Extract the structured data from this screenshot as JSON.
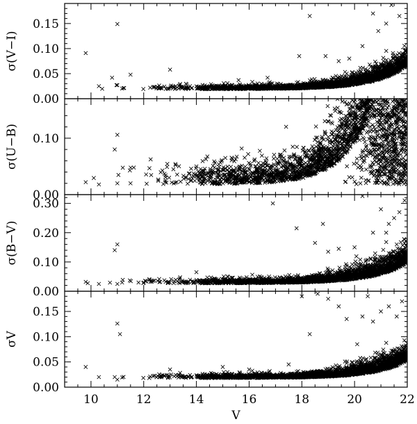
{
  "chart_data": [
    {
      "type": "scatter",
      "ylabel": "σ(V−I)",
      "xlim": [
        9,
        22
      ],
      "ylim": [
        0,
        0.19
      ],
      "yticks": [
        0.0,
        0.05,
        0.1,
        0.15
      ],
      "ytick_labels": [
        "0.00",
        "0.05",
        "0.10",
        "0.15"
      ],
      "marker": "x",
      "trend": {
        "floor": 0.019,
        "amp": 0.048,
        "rate": 0.85,
        "center": 22,
        "noise": 0.004,
        "tail_cap": 0.19
      },
      "points": [
        [
          9.8,
          0.091
        ],
        [
          10.3,
          0.025
        ],
        [
          10.8,
          0.042
        ],
        [
          11.0,
          0.149
        ],
        [
          11.0,
          0.027
        ],
        [
          11.5,
          0.048
        ],
        [
          13.0,
          0.058
        ],
        [
          15.6,
          0.037
        ],
        [
          16.7,
          0.042
        ],
        [
          17.9,
          0.085
        ],
        [
          18.3,
          0.165
        ],
        [
          18.9,
          0.085
        ],
        [
          19.4,
          0.075
        ],
        [
          19.8,
          0.08
        ],
        [
          20.3,
          0.105
        ],
        [
          20.7,
          0.17
        ],
        [
          20.9,
          0.135
        ],
        [
          21.2,
          0.15
        ],
        [
          21.4,
          0.187
        ],
        [
          21.7,
          0.165
        ],
        [
          21.8,
          0.085
        ],
        [
          20.9,
          0.065
        ],
        [
          21.2,
          0.06
        ]
      ]
    },
    {
      "type": "scatter",
      "ylabel": "σ(U−B)",
      "xlim": [
        9,
        22
      ],
      "ylim": [
        0,
        0.17
      ],
      "yticks": [
        0.0,
        0.1
      ],
      "ytick_labels": [
        "0.00",
        "0.10"
      ],
      "marker": "x",
      "trend": {
        "floor": 0.018,
        "amp": 0.09,
        "rate": 0.95,
        "center": 20.2,
        "noise": 0.02,
        "tail_cap": 0.17
      },
      "points": [
        [
          9.8,
          0.022
        ],
        [
          10.3,
          0.018
        ],
        [
          10.9,
          0.08
        ],
        [
          11.0,
          0.106
        ],
        [
          11.0,
          0.02
        ],
        [
          11.5,
          0.02
        ],
        [
          14.0,
          0.05
        ],
        [
          17.5,
          0.03
        ],
        [
          18.0,
          0.04
        ],
        [
          18.6,
          0.06
        ],
        [
          19.0,
          0.08
        ],
        [
          19.4,
          0.11
        ],
        [
          19.8,
          0.14
        ],
        [
          20.1,
          0.16
        ],
        [
          20.5,
          0.15
        ],
        [
          21.0,
          0.16
        ],
        [
          21.5,
          0.14
        ],
        [
          21.8,
          0.13
        ]
      ]
    },
    {
      "type": "scatter",
      "ylabel": "σ(B−V)",
      "xlim": [
        9,
        22
      ],
      "ylim": [
        0,
        0.33
      ],
      "yticks": [
        0.0,
        0.1,
        0.2,
        0.3
      ],
      "ytick_labels": [
        "0.00",
        "0.10",
        "0.20",
        "0.30"
      ],
      "marker": "x",
      "trend": {
        "floor": 0.027,
        "amp": 0.07,
        "rate": 0.8,
        "center": 22,
        "noise": 0.008,
        "tail_cap": 0.33
      },
      "points": [
        [
          9.8,
          0.032
        ],
        [
          10.3,
          0.025
        ],
        [
          10.9,
          0.14
        ],
        [
          11.0,
          0.16
        ],
        [
          11.0,
          0.025
        ],
        [
          12.0,
          0.03
        ],
        [
          14.0,
          0.065
        ],
        [
          16.9,
          0.3
        ],
        [
          17.8,
          0.215
        ],
        [
          18.5,
          0.165
        ],
        [
          18.8,
          0.23
        ],
        [
          19.0,
          0.135
        ],
        [
          19.4,
          0.145
        ],
        [
          20.0,
          0.15
        ],
        [
          20.3,
          0.325
        ],
        [
          20.7,
          0.2
        ],
        [
          21.0,
          0.28
        ],
        [
          21.2,
          0.2
        ],
        [
          21.5,
          0.25
        ],
        [
          21.7,
          0.27
        ],
        [
          21.9,
          0.31
        ],
        [
          21.3,
          0.23
        ],
        [
          21.6,
          0.16
        ]
      ]
    },
    {
      "type": "scatter",
      "ylabel": "σV",
      "xlabel": "V",
      "xlim": [
        9,
        22
      ],
      "ylim": [
        0,
        0.19
      ],
      "xticks": [
        10,
        12,
        14,
        16,
        18,
        20,
        22
      ],
      "xtick_labels": [
        "10",
        "12",
        "14",
        "16",
        "18",
        "20",
        "22"
      ],
      "yticks": [
        0.0,
        0.05,
        0.1,
        0.15
      ],
      "ytick_labels": [
        "0.00",
        "0.05",
        "0.10",
        "0.15"
      ],
      "marker": "x",
      "trend": {
        "floor": 0.018,
        "amp": 0.035,
        "rate": 0.85,
        "center": 22,
        "noise": 0.004,
        "tail_cap": 0.19
      },
      "points": [
        [
          9.8,
          0.04
        ],
        [
          10.3,
          0.02
        ],
        [
          10.9,
          0.02
        ],
        [
          11.0,
          0.126
        ],
        [
          11.1,
          0.105
        ],
        [
          11.0,
          0.015
        ],
        [
          13.0,
          0.035
        ],
        [
          15.0,
          0.04
        ],
        [
          16.0,
          0.035
        ],
        [
          17.5,
          0.045
        ],
        [
          18.0,
          0.18
        ],
        [
          18.3,
          0.105
        ],
        [
          18.6,
          0.185
        ],
        [
          19.0,
          0.175
        ],
        [
          19.4,
          0.16
        ],
        [
          19.7,
          0.135
        ],
        [
          20.1,
          0.085
        ],
        [
          20.3,
          0.14
        ],
        [
          20.5,
          0.18
        ],
        [
          20.7,
          0.13
        ],
        [
          21.0,
          0.15
        ],
        [
          21.3,
          0.16
        ],
        [
          21.6,
          0.14
        ],
        [
          21.8,
          0.17
        ]
      ]
    }
  ]
}
